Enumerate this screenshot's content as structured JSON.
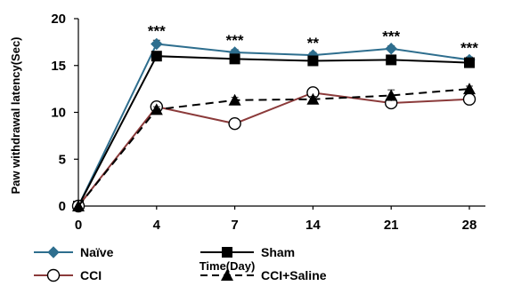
{
  "chart_data": {
    "type": "line",
    "title": "",
    "xlabel": "Time(Day)",
    "ylabel": "Paw withdrawal latency(Sec)",
    "x": [
      "0",
      "4",
      "7",
      "14",
      "21",
      "28"
    ],
    "ylim": [
      0,
      20
    ],
    "yticks": [
      "0",
      "5",
      "10",
      "15",
      "20"
    ],
    "grid": false,
    "legend_position": "bottom",
    "series": [
      {
        "name": "Naïve",
        "values": [
          0,
          17.3,
          16.4,
          16.1,
          16.8,
          15.6
        ],
        "errors": [
          0,
          0.4,
          0.3,
          0.3,
          0.3,
          0.3
        ],
        "color": "#2e6e8e",
        "marker": "diamond",
        "dash": "solid"
      },
      {
        "name": "Sham",
        "values": [
          0,
          16.0,
          15.7,
          15.5,
          15.6,
          15.3
        ],
        "errors": [
          0,
          0.3,
          0.3,
          0.3,
          0.3,
          0.3
        ],
        "color": "#000000",
        "marker": "square",
        "dash": "solid"
      },
      {
        "name": "CCI",
        "values": [
          0,
          10.6,
          8.8,
          12.1,
          11.0,
          11.4
        ],
        "errors": [
          0,
          0.3,
          0.3,
          0.3,
          0.3,
          0.3
        ],
        "color": "#8b3a3a",
        "marker": "open-circle",
        "dash": "solid"
      },
      {
        "name": "CCI+Saline",
        "values": [
          0,
          10.3,
          11.3,
          11.4,
          11.8,
          12.5
        ],
        "errors": [
          0,
          0.3,
          0.3,
          0.3,
          0.6,
          0.3
        ],
        "color": "#000000",
        "marker": "triangle",
        "dash": "dashed"
      }
    ],
    "annotations": [
      {
        "x": "4",
        "text": "***"
      },
      {
        "x": "7",
        "text": "***"
      },
      {
        "x": "14",
        "text": "**"
      },
      {
        "x": "21",
        "text": "***"
      },
      {
        "x": "28",
        "text": "***"
      }
    ]
  }
}
